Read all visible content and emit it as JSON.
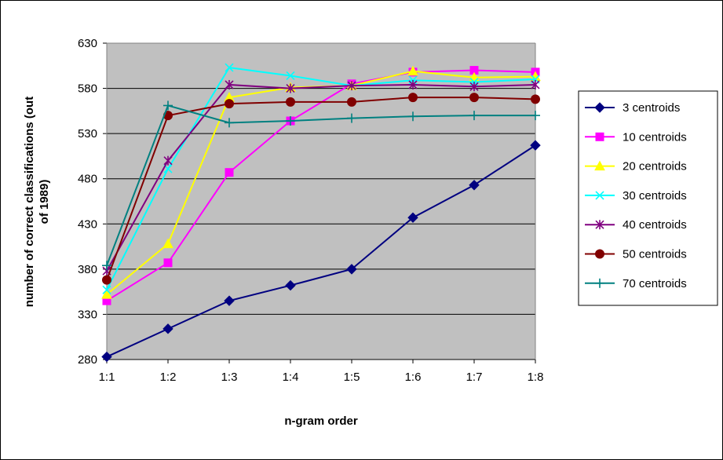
{
  "chart_data": {
    "type": "line",
    "title": "",
    "xlabel": "n-gram order",
    "ylabel": "number of correct classifications (out of 1989)",
    "categories": [
      "1:1",
      "1:2",
      "1:3",
      "1:4",
      "1:5",
      "1:6",
      "1:7",
      "1:8"
    ],
    "ylim": [
      280,
      630
    ],
    "yticks": [
      280,
      330,
      380,
      430,
      480,
      530,
      580,
      630
    ],
    "grid": "horizontal major gridlines",
    "legend_position": "right",
    "colors": {
      "plot_background": "#c0c0c0",
      "chart_background": "#ffffff",
      "gridline": "#000000"
    },
    "series": [
      {
        "name": "3 centroids",
        "color": "#000080",
        "marker": "diamond",
        "values": [
          283,
          314,
          345,
          362,
          380,
          437,
          473,
          517
        ]
      },
      {
        "name": "10 centroids",
        "color": "#ff00ff",
        "marker": "square",
        "values": [
          345,
          387,
          487,
          544,
          585,
          598,
          600,
          598
        ]
      },
      {
        "name": "20 centroids",
        "color": "#ffff00",
        "marker": "triangle",
        "values": [
          352,
          408,
          570,
          581,
          583,
          599,
          592,
          593
        ]
      },
      {
        "name": "30 centroids",
        "color": "#00ffff",
        "marker": "x",
        "values": [
          357,
          491,
          603,
          594,
          583,
          589,
          587,
          590
        ]
      },
      {
        "name": "40 centroids",
        "color": "#800080",
        "marker": "star",
        "values": [
          378,
          500,
          584,
          580,
          583,
          584,
          582,
          584
        ]
      },
      {
        "name": "50 centroids",
        "color": "#800000",
        "marker": "circle",
        "values": [
          368,
          550,
          563,
          565,
          565,
          570,
          570,
          568
        ]
      },
      {
        "name": "70 centroids",
        "color": "#008080",
        "marker": "plus",
        "values": [
          384,
          561,
          542,
          544,
          547,
          549,
          550,
          550
        ]
      }
    ]
  }
}
